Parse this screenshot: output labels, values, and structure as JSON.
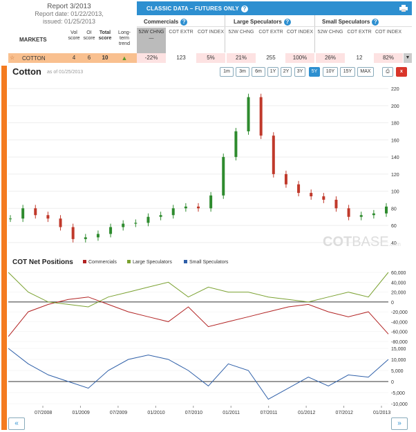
{
  "report": {
    "title": "Report 3/2013",
    "report_date": "Report date: 01/22/2013,",
    "issued": "issued: 01/25/2013"
  },
  "header": {
    "title": "CLASSIC DATA – FUTURES ONLY"
  },
  "groups": {
    "commercials": "Commercials",
    "large": "Large Speculators",
    "small": "Small Speculators"
  },
  "markets_label": "MARKETS",
  "market_cols": {
    "vol": "Vol score",
    "oi": "OI score",
    "total": "Total score",
    "trend": "Long-term trend"
  },
  "col_headers": [
    "52W CHNG",
    "COT EXTR",
    "COT INDEX",
    "52W CHNG",
    "COT EXTR",
    "COT INDEX",
    "52W CHNG",
    "COT EXTR",
    "COT INDEX"
  ],
  "row": {
    "name": "COTTON",
    "vol": "4",
    "oi": "6",
    "total": "10",
    "values": [
      "-22%",
      "123",
      "5%",
      "21%",
      "255",
      "100%",
      "26%",
      "12",
      "82%"
    ]
  },
  "chart": {
    "title": "Cotton",
    "asof": "as of 01/25/2013",
    "ranges": [
      "1m",
      "3m",
      "6m",
      "1Y",
      "2Y",
      "3Y",
      "5Y",
      "10Y",
      "15Y",
      "MAX"
    ],
    "active_range": "5Y",
    "close_label": "x",
    "watermark_a": "COT",
    "watermark_b": "BASE",
    "watermark_c": ".com"
  },
  "cot": {
    "title": "COT Net Positions",
    "legend": [
      "Commercials",
      "Large Speculators",
      "Small Speculators"
    ]
  },
  "colors": {
    "commercials": "#b22222",
    "large": "#7aa130",
    "small": "#2e5fa8",
    "up": "#2e8b2e",
    "down": "#c0392b",
    "accent": "#f47b20",
    "header": "#2d8fd0"
  },
  "nav_prev": "«",
  "chart_data": [
    {
      "type": "candlestick",
      "title": "Cotton",
      "ylim": [
        35,
        225
      ],
      "yticks": [
        "40",
        "60",
        "80",
        "100",
        "120",
        "140",
        "160",
        "180",
        "200",
        "220"
      ],
      "x": [
        "2008-01",
        "2008-03",
        "2008-05",
        "2008-07",
        "2008-09",
        "2008-11",
        "2009-01",
        "2009-03",
        "2009-05",
        "2009-07",
        "2009-09",
        "2009-11",
        "2010-01",
        "2010-03",
        "2010-05",
        "2010-07",
        "2010-09",
        "2010-11",
        "2011-01",
        "2011-03",
        "2011-05",
        "2011-07",
        "2011-09",
        "2011-11",
        "2012-01",
        "2012-03",
        "2012-05",
        "2012-07",
        "2012-09",
        "2012-11",
        "2013-01"
      ],
      "y": [
        68,
        80,
        72,
        68,
        58,
        44,
        46,
        50,
        58,
        62,
        63,
        70,
        72,
        80,
        82,
        80,
        95,
        140,
        170,
        210,
        165,
        120,
        108,
        98,
        94,
        90,
        80,
        70,
        72,
        74,
        82
      ]
    },
    {
      "type": "line",
      "title": "COT Net Positions",
      "yticks": [
        "60,000",
        "40,000",
        "20,000",
        "0",
        "-20,000",
        "-40,000",
        "-60,000",
        "-80,000"
      ],
      "xticks": [
        "07/2008",
        "01/2009",
        "07/2009",
        "01/2010",
        "07/2010",
        "01/2011",
        "07/2011",
        "01/2012",
        "07/2012",
        "01/2013"
      ],
      "series": [
        {
          "name": "Commercials",
          "values": [
            -70000,
            -20000,
            -5000,
            5000,
            10000,
            -5000,
            -20000,
            -30000,
            -40000,
            -10000,
            -50000,
            -40000,
            -30000,
            -20000,
            -10000,
            -5000,
            -20000,
            -30000,
            -20000,
            -65000
          ]
        },
        {
          "name": "Large Speculators",
          "values": [
            60000,
            20000,
            0,
            -5000,
            -10000,
            10000,
            20000,
            30000,
            40000,
            10000,
            30000,
            20000,
            20000,
            10000,
            5000,
            0,
            10000,
            20000,
            10000,
            60000
          ]
        }
      ]
    },
    {
      "type": "line",
      "title": "Small Speculators",
      "yticks": [
        "15,000",
        "10,000",
        "5,000",
        "0",
        "-5,000",
        "-10,000"
      ],
      "series": [
        {
          "name": "Small Speculators",
          "values": [
            15000,
            8000,
            3000,
            0,
            -3000,
            5000,
            10000,
            12000,
            10000,
            5000,
            -2000,
            8000,
            5000,
            -8000,
            -3000,
            2000,
            -2000,
            3000,
            2000,
            10000
          ]
        }
      ]
    }
  ]
}
